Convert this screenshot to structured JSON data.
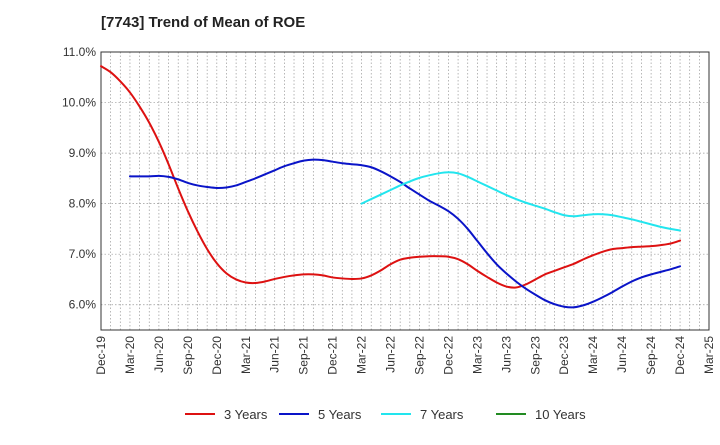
{
  "chart_data": {
    "type": "line",
    "title": "[7743]  Trend of Mean of ROE",
    "xlabel": "",
    "ylabel": "",
    "ylim": [
      5.5,
      11.0
    ],
    "yticks": [
      6.0,
      7.0,
      8.0,
      9.0,
      10.0,
      11.0
    ],
    "ytick_labels": [
      "6.0%",
      "7.0%",
      "8.0%",
      "9.0%",
      "10.0%",
      "11.0%"
    ],
    "x_tick_labels": [
      "Dec-19",
      "Mar-20",
      "Jun-20",
      "Sep-20",
      "Dec-20",
      "Mar-21",
      "Jun-21",
      "Sep-21",
      "Dec-21",
      "Mar-22",
      "Jun-22",
      "Sep-22",
      "Dec-22",
      "Mar-23",
      "Jun-23",
      "Sep-23",
      "Dec-23",
      "Mar-24",
      "Jun-24",
      "Sep-24",
      "Dec-24",
      "Mar-25"
    ],
    "grid": true,
    "legend_position": "bottom",
    "series": [
      {
        "name": "3 Years",
        "color": "#dd1111",
        "points": [
          [
            "Dec-19",
            10.72
          ],
          [
            "Jan-20",
            10.6
          ],
          [
            "Feb-20",
            10.42
          ],
          [
            "Mar-20",
            10.2
          ],
          [
            "Apr-20",
            9.92
          ],
          [
            "May-20",
            9.6
          ],
          [
            "Jun-20",
            9.22
          ],
          [
            "Jul-20",
            8.78
          ],
          [
            "Aug-20",
            8.3
          ],
          [
            "Sep-20",
            7.85
          ],
          [
            "Oct-20",
            7.45
          ],
          [
            "Nov-20",
            7.1
          ],
          [
            "Dec-20",
            6.82
          ],
          [
            "Jan-21",
            6.62
          ],
          [
            "Feb-21",
            6.5
          ],
          [
            "Mar-21",
            6.44
          ],
          [
            "Apr-21",
            6.43
          ],
          [
            "May-21",
            6.46
          ],
          [
            "Jun-21",
            6.51
          ],
          [
            "Jul-21",
            6.55
          ],
          [
            "Aug-21",
            6.58
          ],
          [
            "Sep-21",
            6.6
          ],
          [
            "Oct-21",
            6.6
          ],
          [
            "Nov-21",
            6.58
          ],
          [
            "Dec-21",
            6.54
          ],
          [
            "Jan-22",
            6.52
          ],
          [
            "Feb-22",
            6.51
          ],
          [
            "Mar-22",
            6.52
          ],
          [
            "Apr-22",
            6.58
          ],
          [
            "May-22",
            6.68
          ],
          [
            "Jun-22",
            6.8
          ],
          [
            "Jul-22",
            6.89
          ],
          [
            "Aug-22",
            6.93
          ],
          [
            "Sep-22",
            6.95
          ],
          [
            "Oct-22",
            6.96
          ],
          [
            "Nov-22",
            6.96
          ],
          [
            "Dec-22",
            6.95
          ],
          [
            "Jan-23",
            6.9
          ],
          [
            "Feb-23",
            6.8
          ],
          [
            "Mar-23",
            6.67
          ],
          [
            "Apr-23",
            6.55
          ],
          [
            "May-23",
            6.44
          ],
          [
            "Jun-23",
            6.36
          ],
          [
            "Jul-23",
            6.34
          ],
          [
            "Aug-23",
            6.4
          ],
          [
            "Sep-23",
            6.5
          ],
          [
            "Oct-23",
            6.6
          ],
          [
            "Nov-23",
            6.67
          ],
          [
            "Dec-23",
            6.74
          ],
          [
            "Jan-24",
            6.81
          ],
          [
            "Feb-24",
            6.9
          ],
          [
            "Mar-24",
            6.98
          ],
          [
            "Apr-24",
            7.05
          ],
          [
            "May-24",
            7.1
          ],
          [
            "Jun-24",
            7.12
          ],
          [
            "Jul-24",
            7.14
          ],
          [
            "Aug-24",
            7.15
          ],
          [
            "Sep-24",
            7.16
          ],
          [
            "Oct-24",
            7.18
          ],
          [
            "Nov-24",
            7.21
          ],
          [
            "Dec-24",
            7.27
          ]
        ]
      },
      {
        "name": "5 Years",
        "color": "#0a14c8",
        "points": [
          [
            "Mar-20",
            8.54
          ],
          [
            "Apr-20",
            8.54
          ],
          [
            "May-20",
            8.54
          ],
          [
            "Jun-20",
            8.55
          ],
          [
            "Jul-20",
            8.53
          ],
          [
            "Aug-20",
            8.48
          ],
          [
            "Sep-20",
            8.41
          ],
          [
            "Oct-20",
            8.36
          ],
          [
            "Nov-20",
            8.33
          ],
          [
            "Dec-20",
            8.31
          ],
          [
            "Jan-21",
            8.32
          ],
          [
            "Feb-21",
            8.36
          ],
          [
            "Mar-21",
            8.43
          ],
          [
            "Apr-21",
            8.5
          ],
          [
            "May-21",
            8.58
          ],
          [
            "Jun-21",
            8.66
          ],
          [
            "Jul-21",
            8.74
          ],
          [
            "Aug-21",
            8.8
          ],
          [
            "Sep-21",
            8.85
          ],
          [
            "Oct-21",
            8.87
          ],
          [
            "Nov-21",
            8.86
          ],
          [
            "Dec-21",
            8.83
          ],
          [
            "Jan-22",
            8.8
          ],
          [
            "Feb-22",
            8.78
          ],
          [
            "Mar-22",
            8.76
          ],
          [
            "Apr-22",
            8.72
          ],
          [
            "May-22",
            8.64
          ],
          [
            "Jun-22",
            8.54
          ],
          [
            "Jul-22",
            8.43
          ],
          [
            "Aug-22",
            8.3
          ],
          [
            "Sep-22",
            8.18
          ],
          [
            "Oct-22",
            8.06
          ],
          [
            "Nov-22",
            7.96
          ],
          [
            "Dec-22",
            7.85
          ],
          [
            "Jan-23",
            7.7
          ],
          [
            "Feb-23",
            7.5
          ],
          [
            "Mar-23",
            7.26
          ],
          [
            "Apr-23",
            7.02
          ],
          [
            "May-23",
            6.8
          ],
          [
            "Jun-23",
            6.62
          ],
          [
            "Jul-23",
            6.46
          ],
          [
            "Aug-23",
            6.32
          ],
          [
            "Sep-23",
            6.2
          ],
          [
            "Oct-23",
            6.09
          ],
          [
            "Nov-23",
            6.01
          ],
          [
            "Dec-23",
            5.96
          ],
          [
            "Jan-24",
            5.95
          ],
          [
            "Feb-24",
            5.99
          ],
          [
            "Mar-24",
            6.06
          ],
          [
            "Apr-24",
            6.15
          ],
          [
            "May-24",
            6.25
          ],
          [
            "Jun-24",
            6.36
          ],
          [
            "Jul-24",
            6.46
          ],
          [
            "Aug-24",
            6.54
          ],
          [
            "Sep-24",
            6.6
          ],
          [
            "Oct-24",
            6.65
          ],
          [
            "Nov-24",
            6.7
          ],
          [
            "Dec-24",
            6.76
          ]
        ]
      },
      {
        "name": "7 Years",
        "color": "#22e5ee",
        "points": [
          [
            "Mar-22",
            8.0
          ],
          [
            "Apr-22",
            8.09
          ],
          [
            "May-22",
            8.18
          ],
          [
            "Jun-22",
            8.27
          ],
          [
            "Jul-22",
            8.36
          ],
          [
            "Aug-22",
            8.44
          ],
          [
            "Sep-22",
            8.51
          ],
          [
            "Oct-22",
            8.56
          ],
          [
            "Nov-22",
            8.6
          ],
          [
            "Dec-22",
            8.62
          ],
          [
            "Jan-23",
            8.6
          ],
          [
            "Feb-23",
            8.53
          ],
          [
            "Mar-23",
            8.44
          ],
          [
            "Apr-23",
            8.35
          ],
          [
            "May-23",
            8.26
          ],
          [
            "Jun-23",
            8.17
          ],
          [
            "Jul-23",
            8.09
          ],
          [
            "Aug-23",
            8.02
          ],
          [
            "Sep-23",
            7.96
          ],
          [
            "Oct-23",
            7.9
          ],
          [
            "Nov-23",
            7.83
          ],
          [
            "Dec-23",
            7.77
          ],
          [
            "Jan-24",
            7.75
          ],
          [
            "Feb-24",
            7.77
          ],
          [
            "Mar-24",
            7.79
          ],
          [
            "Apr-24",
            7.79
          ],
          [
            "May-24",
            7.77
          ],
          [
            "Jun-24",
            7.73
          ],
          [
            "Jul-24",
            7.69
          ],
          [
            "Aug-24",
            7.64
          ],
          [
            "Sep-24",
            7.59
          ],
          [
            "Oct-24",
            7.54
          ],
          [
            "Nov-24",
            7.5
          ],
          [
            "Dec-24",
            7.47
          ]
        ]
      },
      {
        "name": "10 Years",
        "color": "#228b22",
        "points": []
      }
    ]
  }
}
